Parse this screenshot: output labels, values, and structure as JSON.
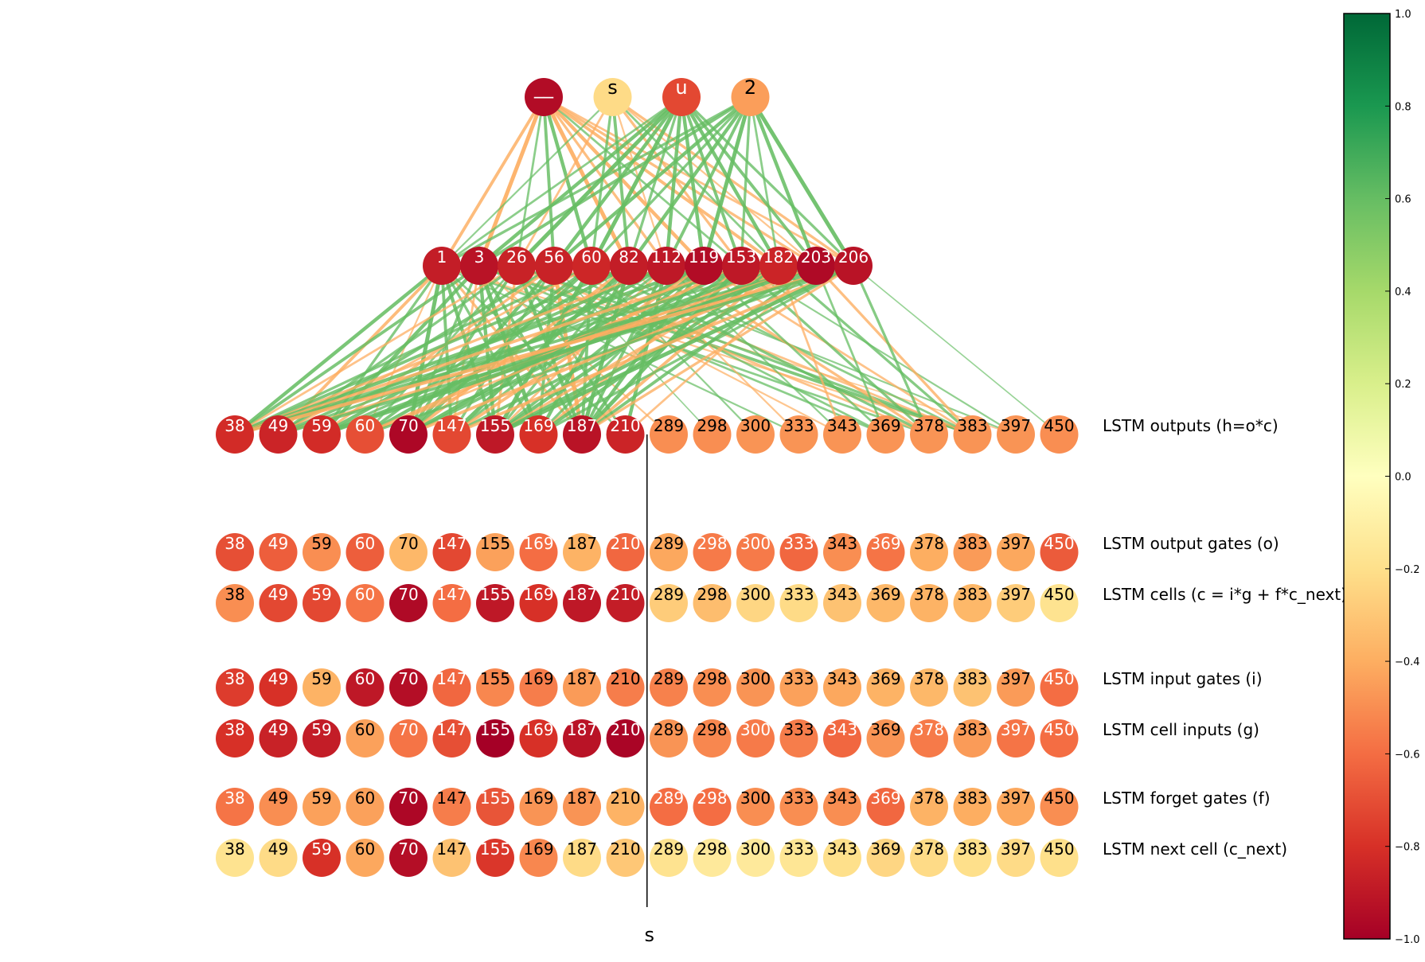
{
  "diagram": {
    "output_layer": {
      "nodes": [
        {
          "label": "__",
          "value": -0.95
        },
        {
          "label": "s",
          "value": -0.22
        },
        {
          "label": "u",
          "value": -0.72
        },
        {
          "label": "2",
          "value": -0.45
        }
      ]
    },
    "hidden_layer": {
      "nodes": [
        {
          "label": "1",
          "value": -0.88
        },
        {
          "label": "3",
          "value": -0.92
        },
        {
          "label": "26",
          "value": -0.86
        },
        {
          "label": "56",
          "value": -0.86
        },
        {
          "label": "60",
          "value": -0.84
        },
        {
          "label": "82",
          "value": -0.88
        },
        {
          "label": "112",
          "value": -0.9
        },
        {
          "label": "119",
          "value": -0.95
        },
        {
          "label": "153",
          "value": -0.9
        },
        {
          "label": "182",
          "value": -0.85
        },
        {
          "label": "203",
          "value": -0.96
        },
        {
          "label": "206",
          "value": -0.92
        }
      ]
    },
    "unit_labels": [
      "38",
      "49",
      "59",
      "60",
      "70",
      "147",
      "155",
      "169",
      "187",
      "210",
      "289",
      "298",
      "300",
      "333",
      "343",
      "369",
      "378",
      "383",
      "397",
      "450"
    ],
    "rows": [
      {
        "name": "LSTM outputs (h=o*c)",
        "values": [
          -0.82,
          -0.85,
          -0.82,
          -0.7,
          -0.97,
          -0.72,
          -0.9,
          -0.8,
          -0.92,
          -0.85,
          -0.5,
          -0.5,
          -0.48,
          -0.48,
          -0.48,
          -0.48,
          -0.48,
          -0.48,
          -0.48,
          -0.5
        ]
      },
      {
        "name": "LSTM output gates (o)",
        "values": [
          -0.7,
          -0.65,
          -0.5,
          -0.65,
          -0.36,
          -0.72,
          -0.44,
          -0.6,
          -0.38,
          -0.62,
          -0.42,
          -0.56,
          -0.56,
          -0.62,
          -0.5,
          -0.58,
          -0.4,
          -0.46,
          -0.42,
          -0.66
        ]
      },
      {
        "name": "LSTM cells (c = i*g + f*c_next)",
        "values": [
          -0.5,
          -0.72,
          -0.72,
          -0.58,
          -0.96,
          -0.6,
          -0.9,
          -0.8,
          -0.9,
          -0.88,
          -0.28,
          -0.34,
          -0.24,
          -0.22,
          -0.32,
          -0.36,
          -0.38,
          -0.36,
          -0.28,
          -0.18
        ]
      },
      {
        "name": "LSTM input gates (i)",
        "values": [
          -0.76,
          -0.8,
          -0.38,
          -0.9,
          -0.94,
          -0.62,
          -0.52,
          -0.55,
          -0.46,
          -0.55,
          -0.54,
          -0.5,
          -0.48,
          -0.44,
          -0.42,
          -0.38,
          -0.36,
          -0.32,
          -0.46,
          -0.6
        ]
      },
      {
        "name": "LSTM cell inputs (g)",
        "values": [
          -0.8,
          -0.86,
          -0.88,
          -0.44,
          -0.58,
          -0.7,
          -1.0,
          -0.8,
          -0.92,
          -0.98,
          -0.48,
          -0.52,
          -0.56,
          -0.55,
          -0.62,
          -0.48,
          -0.56,
          -0.46,
          -0.58,
          -0.6
        ]
      },
      {
        "name": "LSTM forget gates (f)",
        "values": [
          -0.58,
          -0.5,
          -0.44,
          -0.44,
          -0.97,
          -0.55,
          -0.68,
          -0.48,
          -0.48,
          -0.38,
          -0.6,
          -0.6,
          -0.5,
          -0.5,
          -0.5,
          -0.62,
          -0.38,
          -0.4,
          -0.42,
          -0.5
        ]
      },
      {
        "name": "LSTM next cell (c_next)",
        "values": [
          -0.18,
          -0.22,
          -0.8,
          -0.42,
          -0.94,
          -0.32,
          -0.78,
          -0.52,
          -0.22,
          -0.3,
          -0.18,
          -0.14,
          -0.14,
          -0.16,
          -0.2,
          -0.24,
          -0.22,
          -0.2,
          -0.22,
          -0.2
        ]
      }
    ],
    "input_char": "s",
    "colorbar": {
      "min": -1.0,
      "max": 1.0,
      "ticks": [
        "1.0",
        "0.8",
        "0.6",
        "0.4",
        "0.2",
        "0.0",
        "−0.2",
        "−0.4",
        "−0.6",
        "−0.8",
        "−1.0"
      ],
      "tick_values": [
        1.0,
        0.8,
        0.6,
        0.4,
        0.2,
        0.0,
        -0.2,
        -0.4,
        -0.6,
        -0.8,
        -1.0
      ],
      "colors": [
        "#a50026",
        "#d73027",
        "#f46d43",
        "#fdae61",
        "#fee08b",
        "#ffffbf",
        "#d9ef8b",
        "#a6d96a",
        "#66bd63",
        "#1a9850",
        "#006837"
      ]
    },
    "edge_colors": {
      "positive": "#66bd63",
      "negative": "#fdae61"
    },
    "edges_top": [
      [
        0,
        0,
        -0.7
      ],
      [
        0,
        1,
        -0.9
      ],
      [
        0,
        2,
        0.5
      ],
      [
        0,
        3,
        0.7
      ],
      [
        0,
        4,
        0.8
      ],
      [
        0,
        5,
        -0.9
      ],
      [
        0,
        6,
        -0.6
      ],
      [
        0,
        7,
        -0.8
      ],
      [
        0,
        8,
        0.5
      ],
      [
        0,
        9,
        -0.7
      ],
      [
        0,
        10,
        -0.6
      ],
      [
        0,
        11,
        -0.5
      ],
      [
        1,
        0,
        0.4
      ],
      [
        1,
        2,
        -0.5
      ],
      [
        1,
        4,
        0.6
      ],
      [
        1,
        5,
        0.7
      ],
      [
        1,
        6,
        -0.4
      ],
      [
        1,
        8,
        -0.6
      ],
      [
        1,
        9,
        0.5
      ],
      [
        1,
        10,
        -0.4
      ],
      [
        1,
        11,
        -0.6
      ],
      [
        2,
        0,
        0.5
      ],
      [
        2,
        1,
        0.8
      ],
      [
        2,
        2,
        0.9
      ],
      [
        2,
        3,
        0.8
      ],
      [
        2,
        4,
        0.9
      ],
      [
        2,
        5,
        0.6
      ],
      [
        2,
        6,
        0.8
      ],
      [
        2,
        7,
        0.8
      ],
      [
        2,
        8,
        0.7
      ],
      [
        2,
        9,
        0.8
      ],
      [
        2,
        10,
        0.7
      ],
      [
        2,
        11,
        0.6
      ],
      [
        3,
        0,
        0.6
      ],
      [
        3,
        1,
        0.7
      ],
      [
        3,
        3,
        0.8
      ],
      [
        3,
        4,
        0.6
      ],
      [
        3,
        5,
        0.8
      ],
      [
        3,
        6,
        0.7
      ],
      [
        3,
        7,
        0.9
      ],
      [
        3,
        8,
        0.6
      ],
      [
        3,
        9,
        0.5
      ],
      [
        3,
        10,
        0.8
      ],
      [
        3,
        11,
        0.9
      ]
    ],
    "edges_bottom": [
      [
        0,
        0,
        0.8
      ],
      [
        0,
        1,
        -0.7
      ],
      [
        0,
        2,
        0.6
      ],
      [
        0,
        3,
        -0.4
      ],
      [
        0,
        4,
        0.9
      ],
      [
        0,
        5,
        0.7
      ],
      [
        0,
        6,
        0.8
      ],
      [
        0,
        7,
        0.6
      ],
      [
        0,
        8,
        -0.6
      ],
      [
        0,
        9,
        0.5
      ],
      [
        0,
        13,
        0.4
      ],
      [
        0,
        16,
        0.5
      ],
      [
        0,
        17,
        -0.4
      ],
      [
        1,
        0,
        0.7
      ],
      [
        1,
        2,
        0.8
      ],
      [
        1,
        4,
        0.6
      ],
      [
        1,
        5,
        -0.5
      ],
      [
        1,
        6,
        0.8
      ],
      [
        1,
        7,
        0.9
      ],
      [
        1,
        8,
        0.7
      ],
      [
        1,
        10,
        -0.4
      ],
      [
        1,
        15,
        0.5
      ],
      [
        1,
        17,
        0.7
      ],
      [
        1,
        18,
        -0.3
      ],
      [
        2,
        0,
        -0.5
      ],
      [
        2,
        1,
        0.6
      ],
      [
        2,
        3,
        0.5
      ],
      [
        2,
        4,
        0.7
      ],
      [
        2,
        6,
        -0.6
      ],
      [
        2,
        8,
        0.8
      ],
      [
        2,
        9,
        0.6
      ],
      [
        2,
        14,
        -0.4
      ],
      [
        2,
        16,
        -0.5
      ],
      [
        2,
        17,
        0.6
      ],
      [
        3,
        1,
        0.7
      ],
      [
        3,
        2,
        -0.6
      ],
      [
        3,
        4,
        0.8
      ],
      [
        3,
        5,
        0.6
      ],
      [
        3,
        7,
        0.7
      ],
      [
        3,
        8,
        -0.9
      ],
      [
        3,
        11,
        0.3
      ],
      [
        3,
        15,
        0.5
      ],
      [
        3,
        17,
        -0.5
      ],
      [
        4,
        0,
        0.6
      ],
      [
        4,
        1,
        -0.5
      ],
      [
        4,
        3,
        0.7
      ],
      [
        4,
        4,
        0.8
      ],
      [
        4,
        6,
        0.9
      ],
      [
        4,
        8,
        0.7
      ],
      [
        4,
        12,
        0.4
      ],
      [
        4,
        16,
        0.6
      ],
      [
        4,
        18,
        0.4
      ],
      [
        5,
        0,
        0.7
      ],
      [
        5,
        2,
        0.8
      ],
      [
        5,
        4,
        -0.7
      ],
      [
        5,
        5,
        0.9
      ],
      [
        5,
        6,
        0.6
      ],
      [
        5,
        7,
        0.8
      ],
      [
        5,
        8,
        0.9
      ],
      [
        5,
        13,
        -0.4
      ],
      [
        5,
        17,
        0.5
      ],
      [
        6,
        0,
        -0.6
      ],
      [
        6,
        1,
        0.7
      ],
      [
        6,
        3,
        0.8
      ],
      [
        6,
        5,
        0.6
      ],
      [
        6,
        6,
        -0.5
      ],
      [
        6,
        8,
        0.7
      ],
      [
        6,
        9,
        0.8
      ],
      [
        6,
        14,
        0.4
      ],
      [
        6,
        16,
        -0.6
      ],
      [
        7,
        0,
        0.8
      ],
      [
        7,
        2,
        0.6
      ],
      [
        7,
        4,
        0.9
      ],
      [
        7,
        5,
        -0.7
      ],
      [
        7,
        6,
        0.7
      ],
      [
        7,
        7,
        0.6
      ],
      [
        7,
        8,
        0.8
      ],
      [
        7,
        15,
        0.5
      ],
      [
        7,
        17,
        -0.5
      ],
      [
        8,
        0,
        -0.7
      ],
      [
        8,
        1,
        0.6
      ],
      [
        8,
        3,
        -0.8
      ],
      [
        8,
        4,
        0.7
      ],
      [
        8,
        6,
        0.8
      ],
      [
        8,
        7,
        -0.6
      ],
      [
        8,
        8,
        0.9
      ],
      [
        8,
        16,
        0.6
      ],
      [
        8,
        18,
        0.4
      ],
      [
        9,
        0,
        0.6
      ],
      [
        9,
        2,
        0.8
      ],
      [
        9,
        3,
        -0.5
      ],
      [
        9,
        5,
        0.7
      ],
      [
        9,
        6,
        -0.6
      ],
      [
        9,
        7,
        0.8
      ],
      [
        9,
        8,
        -0.7
      ],
      [
        9,
        14,
        -0.5
      ],
      [
        9,
        17,
        0.6
      ],
      [
        10,
        0,
        0.7
      ],
      [
        10,
        1,
        -0.6
      ],
      [
        10,
        2,
        0.9
      ],
      [
        10,
        4,
        -0.7
      ],
      [
        10,
        6,
        0.8
      ],
      [
        10,
        8,
        0.7
      ],
      [
        10,
        9,
        -0.5
      ],
      [
        10,
        15,
        0.5
      ],
      [
        10,
        17,
        -0.6
      ],
      [
        11,
        0,
        -0.8
      ],
      [
        11,
        1,
        0.7
      ],
      [
        11,
        3,
        0.6
      ],
      [
        11,
        5,
        -0.7
      ],
      [
        11,
        6,
        0.9
      ],
      [
        11,
        7,
        0.6
      ],
      [
        11,
        8,
        -0.6
      ],
      [
        11,
        16,
        0.6
      ],
      [
        11,
        19,
        0.3
      ]
    ]
  }
}
